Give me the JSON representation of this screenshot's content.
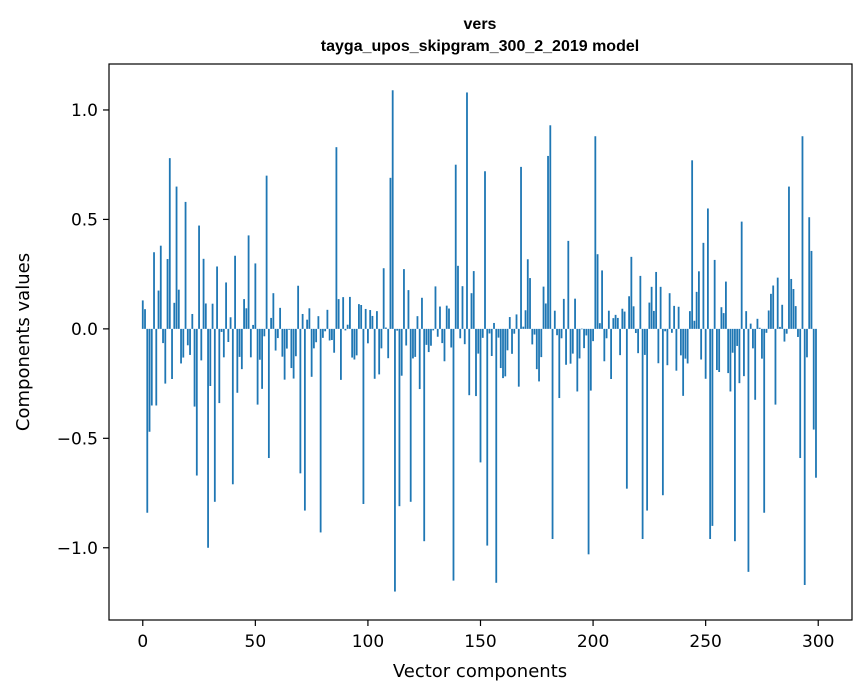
{
  "chart_data": {
    "type": "bar",
    "title": "vers",
    "subtitle": "tayga_upos_skipgram_300_2_2019 model",
    "xlabel": "Vector components",
    "ylabel": "Components values",
    "xlim": [
      -15,
      315
    ],
    "ylim": [
      -1.33,
      1.21
    ],
    "xticks": [
      0,
      50,
      100,
      150,
      200,
      250,
      300
    ],
    "xtick_labels": [
      "0",
      "50",
      "100",
      "150",
      "200",
      "250",
      "300"
    ],
    "yticks": [
      -1.0,
      -0.5,
      0.0,
      0.5,
      1.0
    ],
    "ytick_labels": [
      "−1.0",
      "−0.5",
      "0.0",
      "0.5",
      "1.0"
    ],
    "bar_color": "#1f77b4",
    "grid": false,
    "key_values": [
      {
        "x": 0,
        "y": 0.13
      },
      {
        "x": 1,
        "y": 0.09
      },
      {
        "x": 2,
        "y": -0.84
      },
      {
        "x": 3,
        "y": -0.47
      },
      {
        "x": 4,
        "y": -0.35
      },
      {
        "x": 5,
        "y": 0.35
      },
      {
        "x": 6,
        "y": -0.35
      },
      {
        "x": 8,
        "y": 0.38
      },
      {
        "x": 12,
        "y": 0.78
      },
      {
        "x": 15,
        "y": 0.65
      },
      {
        "x": 19,
        "y": 0.58
      },
      {
        "x": 24,
        "y": -0.67
      },
      {
        "x": 29,
        "y": -1.0
      },
      {
        "x": 32,
        "y": -0.79
      },
      {
        "x": 40,
        "y": -0.71
      },
      {
        "x": 55,
        "y": 0.7
      },
      {
        "x": 56,
        "y": -0.59
      },
      {
        "x": 70,
        "y": -0.66
      },
      {
        "x": 72,
        "y": -0.83
      },
      {
        "x": 79,
        "y": -0.93
      },
      {
        "x": 86,
        "y": 0.83
      },
      {
        "x": 98,
        "y": -0.8
      },
      {
        "x": 110,
        "y": 0.69
      },
      {
        "x": 111,
        "y": 1.09
      },
      {
        "x": 112,
        "y": -1.2
      },
      {
        "x": 114,
        "y": -0.81
      },
      {
        "x": 119,
        "y": -0.79
      },
      {
        "x": 125,
        "y": -0.97
      },
      {
        "x": 138,
        "y": -1.15
      },
      {
        "x": 139,
        "y": 0.75
      },
      {
        "x": 144,
        "y": 1.08
      },
      {
        "x": 150,
        "y": -0.61
      },
      {
        "x": 152,
        "y": 0.72
      },
      {
        "x": 153,
        "y": -0.99
      },
      {
        "x": 157,
        "y": -1.16
      },
      {
        "x": 168,
        "y": 0.74
      },
      {
        "x": 180,
        "y": 0.79
      },
      {
        "x": 181,
        "y": 0.93
      },
      {
        "x": 182,
        "y": -0.96
      },
      {
        "x": 198,
        "y": -1.03
      },
      {
        "x": 201,
        "y": 0.88
      },
      {
        "x": 215,
        "y": -0.73
      },
      {
        "x": 222,
        "y": -0.96
      },
      {
        "x": 224,
        "y": -0.83
      },
      {
        "x": 231,
        "y": -0.76
      },
      {
        "x": 244,
        "y": 0.77
      },
      {
        "x": 251,
        "y": 0.55
      },
      {
        "x": 252,
        "y": -0.96
      },
      {
        "x": 253,
        "y": -0.9
      },
      {
        "x": 263,
        "y": -0.97
      },
      {
        "x": 266,
        "y": 0.49
      },
      {
        "x": 269,
        "y": -1.11
      },
      {
        "x": 276,
        "y": -0.84
      },
      {
        "x": 287,
        "y": 0.65
      },
      {
        "x": 292,
        "y": -0.59
      },
      {
        "x": 293,
        "y": 0.88
      },
      {
        "x": 294,
        "y": -1.17
      },
      {
        "x": 296,
        "y": 0.51
      },
      {
        "x": 298,
        "y": -0.46
      },
      {
        "x": 299,
        "y": -0.68
      }
    ],
    "n_bars": 300,
    "random_seed": 20190300,
    "random_amplitude": 0.5
  }
}
